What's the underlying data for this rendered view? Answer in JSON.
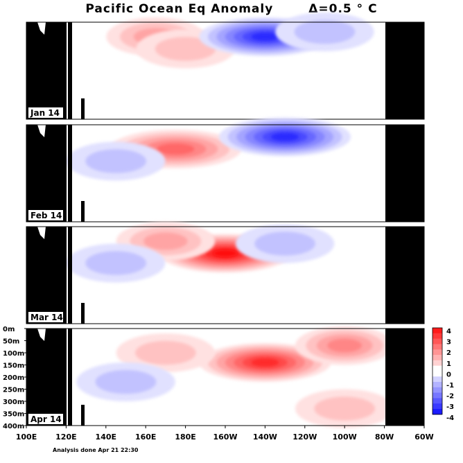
{
  "chart_data": {
    "type": "heatmap",
    "title": "Pacific Ocean Eq Anomaly",
    "interval_label": "Δ=0.5 ° C",
    "x_ticks": [
      "100E",
      "120E",
      "140E",
      "160E",
      "180E",
      "160W",
      "140W",
      "120W",
      "100W",
      "80W",
      "60W"
    ],
    "y_ticks": [
      "0m",
      "50m",
      "100m",
      "150m",
      "200m",
      "250m",
      "300m",
      "350m",
      "400m"
    ],
    "ylim": [
      0,
      400
    ],
    "colorbar": {
      "ticks": [
        "4",
        "3",
        "2",
        "1",
        "0",
        "-1",
        "-2",
        "-3",
        "-4"
      ],
      "range": [
        -4,
        4
      ],
      "step": 0.5,
      "warm": "#ff0000",
      "cold": "#0000ff"
    },
    "panels": [
      {
        "label": "Jan 14",
        "anomalies": [
          {
            "sign": "warm",
            "peak": 1.5,
            "lon": "165E",
            "depth_m": 60
          },
          {
            "sign": "warm",
            "peak": 1.0,
            "lon": "180",
            "depth_m": 110
          },
          {
            "sign": "cold",
            "peak": -3.5,
            "lon": "140W",
            "depth_m": 60
          },
          {
            "sign": "cold",
            "peak": -1.0,
            "lon": "110W",
            "depth_m": 40
          }
        ]
      },
      {
        "label": "Feb 14",
        "anomalies": [
          {
            "sign": "warm",
            "peak": 2.5,
            "lon": "175E",
            "depth_m": 100
          },
          {
            "sign": "cold",
            "peak": -3.5,
            "lon": "130W",
            "depth_m": 50
          },
          {
            "sign": "cold",
            "peak": -1.0,
            "lon": "145E",
            "depth_m": 150
          }
        ]
      },
      {
        "label": "Mar 14",
        "anomalies": [
          {
            "sign": "warm",
            "peak": 4.0,
            "lon": "160W",
            "depth_m": 110
          },
          {
            "sign": "warm",
            "peak": 1.5,
            "lon": "170E",
            "depth_m": 60
          },
          {
            "sign": "cold",
            "peak": -1.0,
            "lon": "130W",
            "depth_m": 70
          },
          {
            "sign": "cold",
            "peak": -1.0,
            "lon": "145E",
            "depth_m": 150
          }
        ]
      },
      {
        "label": "Apr 14",
        "anomalies": [
          {
            "sign": "warm",
            "peak": 3.5,
            "lon": "140W",
            "depth_m": 140
          },
          {
            "sign": "warm",
            "peak": 2.0,
            "lon": "100W",
            "depth_m": 70
          },
          {
            "sign": "warm",
            "peak": 1.0,
            "lon": "170E",
            "depth_m": 100
          },
          {
            "sign": "cold",
            "peak": -1.0,
            "lon": "150E",
            "depth_m": 220
          },
          {
            "sign": "warm",
            "peak": 1.0,
            "lon": "100W",
            "depth_m": 330
          }
        ]
      }
    ]
  },
  "footer": "Analysis done Apr 21 22:30"
}
